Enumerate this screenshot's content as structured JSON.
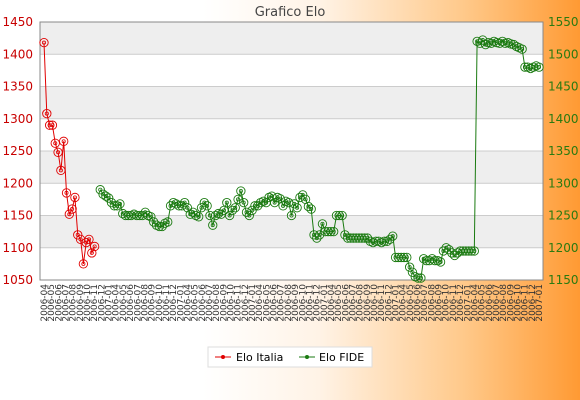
{
  "chart_data": {
    "type": "line",
    "title": "Grafico Elo",
    "y_left": {
      "ticks": [
        1050,
        1100,
        1150,
        1200,
        1250,
        1300,
        1350,
        1400,
        1450
      ],
      "range": [
        1050,
        1450
      ]
    },
    "y_right": {
      "ticks": [
        1150,
        1200,
        1250,
        1300,
        1350,
        1400,
        1450,
        1500,
        1550
      ],
      "range": [
        1150,
        1550
      ]
    },
    "x_tick_labels": [
      "2006-04",
      "2006-05",
      "2006-06",
      "2006-07",
      "2006-08",
      "2006-09",
      "2006-10",
      "2006-11",
      "2006-12",
      "2007-01"
    ],
    "grid": "horizontal, alternating bands",
    "legend": {
      "placement": "bottom-center",
      "entries": [
        "Elo Italia",
        "Elo FIDE"
      ]
    },
    "series": [
      {
        "name": "Elo Italia",
        "color": "#e00000",
        "axis": "left",
        "x": [
          0,
          1,
          2,
          3,
          4,
          5,
          6,
          7,
          8,
          9,
          10,
          11,
          12,
          13,
          14,
          15,
          16,
          17,
          18,
          19,
          20,
          21
        ],
        "values": [
          1418,
          1308,
          1290,
          1290,
          1262,
          1248,
          1220,
          1265,
          1185,
          1152,
          1160,
          1178,
          1120,
          1113,
          1075,
          1108,
          1113,
          1092,
          1102,
          null,
          null,
          null
        ]
      },
      {
        "name": "Elo FIDE",
        "color": "#1a7a10",
        "axis": "right",
        "x_start": 20,
        "values": [
          1290,
          1283,
          1280,
          1277,
          1270,
          1265,
          1265,
          1268,
          1253,
          1250,
          1250,
          1250,
          1252,
          1250,
          1250,
          1250,
          1255,
          1250,
          1248,
          1240,
          1235,
          1233,
          1233,
          1238,
          1240,
          1265,
          1270,
          1268,
          1265,
          1265,
          1270,
          1262,
          1252,
          1255,
          1250,
          1248,
          1262,
          1270,
          1265,
          1250,
          1235,
          1250,
          1253,
          1252,
          1258,
          1270,
          1250,
          1258,
          1262,
          1275,
          1288,
          1270,
          1255,
          1250,
          1258,
          1265,
          1265,
          1270,
          1272,
          1270,
          1278,
          1280,
          1270,
          1278,
          1276,
          1265,
          1272,
          1270,
          1250,
          1268,
          1262,
          1278,
          1282,
          1275,
          1264,
          1260,
          1220,
          1215,
          1220,
          1237,
          1225,
          1225,
          1225,
          1225,
          1250,
          1250,
          1250,
          1220,
          1215,
          1215,
          1215,
          1215,
          1215,
          1215,
          1215,
          1215,
          1210,
          1208,
          1210,
          1210,
          1208,
          1210,
          1210,
          1213,
          1218,
          1185,
          1185,
          1185,
          1185,
          1185,
          1170,
          1162,
          1155,
          1153,
          1153,
          1183,
          1180,
          1180,
          1183,
          1180,
          1180,
          1178,
          1195,
          1200,
          1197,
          1192,
          1188,
          1192,
          1195,
          1195,
          1195,
          1195,
          1195,
          1195,
          1520,
          1517,
          1522,
          1515,
          1518,
          1517,
          1520,
          1518,
          1517,
          1520,
          1517,
          1518,
          1516,
          1515,
          1512,
          1510,
          1508,
          1480,
          1480,
          1478,
          1480,
          1482,
          1480
        ]
      }
    ]
  }
}
